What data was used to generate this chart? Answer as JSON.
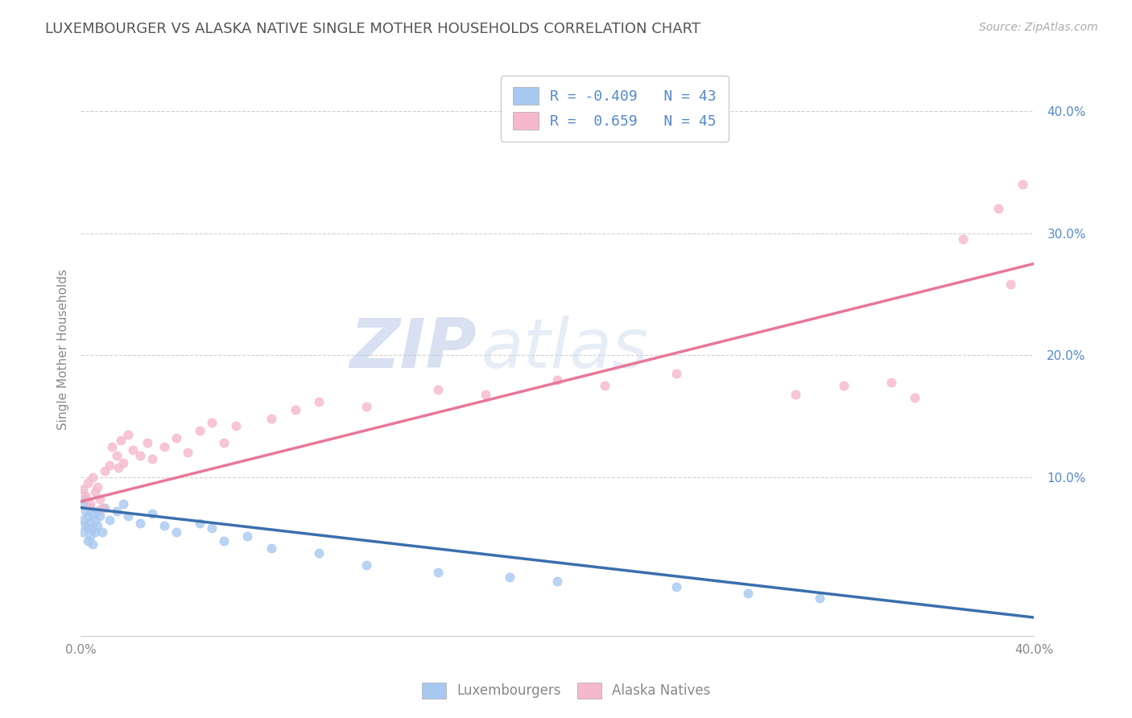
{
  "title": "LUXEMBOURGER VS ALASKA NATIVE SINGLE MOTHER HOUSEHOLDS CORRELATION CHART",
  "source": "Source: ZipAtlas.com",
  "ylabel": "Single Mother Households",
  "ytick_values": [
    0.1,
    0.2,
    0.3,
    0.4
  ],
  "xlim": [
    0.0,
    0.4
  ],
  "ylim": [
    -0.03,
    0.44
  ],
  "blue_scatter": [
    [
      0.001,
      0.078
    ],
    [
      0.001,
      0.065
    ],
    [
      0.001,
      0.055
    ],
    [
      0.002,
      0.082
    ],
    [
      0.002,
      0.072
    ],
    [
      0.002,
      0.06
    ],
    [
      0.003,
      0.068
    ],
    [
      0.003,
      0.058
    ],
    [
      0.003,
      0.048
    ],
    [
      0.004,
      0.075
    ],
    [
      0.004,
      0.063
    ],
    [
      0.004,
      0.052
    ],
    [
      0.005,
      0.07
    ],
    [
      0.005,
      0.058
    ],
    [
      0.005,
      0.045
    ],
    [
      0.006,
      0.065
    ],
    [
      0.006,
      0.055
    ],
    [
      0.007,
      0.072
    ],
    [
      0.007,
      0.06
    ],
    [
      0.008,
      0.068
    ],
    [
      0.009,
      0.055
    ],
    [
      0.01,
      0.075
    ],
    [
      0.012,
      0.065
    ],
    [
      0.015,
      0.072
    ],
    [
      0.018,
      0.078
    ],
    [
      0.02,
      0.068
    ],
    [
      0.025,
      0.062
    ],
    [
      0.03,
      0.07
    ],
    [
      0.035,
      0.06
    ],
    [
      0.04,
      0.055
    ],
    [
      0.05,
      0.062
    ],
    [
      0.055,
      0.058
    ],
    [
      0.06,
      0.048
    ],
    [
      0.07,
      0.052
    ],
    [
      0.08,
      0.042
    ],
    [
      0.1,
      0.038
    ],
    [
      0.12,
      0.028
    ],
    [
      0.15,
      0.022
    ],
    [
      0.18,
      0.018
    ],
    [
      0.2,
      0.015
    ],
    [
      0.25,
      0.01
    ],
    [
      0.28,
      0.005
    ],
    [
      0.31,
      0.001
    ]
  ],
  "pink_scatter": [
    [
      0.001,
      0.09
    ],
    [
      0.002,
      0.085
    ],
    [
      0.003,
      0.095
    ],
    [
      0.004,
      0.078
    ],
    [
      0.005,
      0.1
    ],
    [
      0.006,
      0.088
    ],
    [
      0.007,
      0.092
    ],
    [
      0.008,
      0.082
    ],
    [
      0.009,
      0.075
    ],
    [
      0.01,
      0.105
    ],
    [
      0.012,
      0.11
    ],
    [
      0.013,
      0.125
    ],
    [
      0.015,
      0.118
    ],
    [
      0.016,
      0.108
    ],
    [
      0.017,
      0.13
    ],
    [
      0.018,
      0.112
    ],
    [
      0.02,
      0.135
    ],
    [
      0.022,
      0.122
    ],
    [
      0.025,
      0.118
    ],
    [
      0.028,
      0.128
    ],
    [
      0.03,
      0.115
    ],
    [
      0.035,
      0.125
    ],
    [
      0.04,
      0.132
    ],
    [
      0.045,
      0.12
    ],
    [
      0.05,
      0.138
    ],
    [
      0.055,
      0.145
    ],
    [
      0.06,
      0.128
    ],
    [
      0.065,
      0.142
    ],
    [
      0.08,
      0.148
    ],
    [
      0.09,
      0.155
    ],
    [
      0.1,
      0.162
    ],
    [
      0.12,
      0.158
    ],
    [
      0.15,
      0.172
    ],
    [
      0.17,
      0.168
    ],
    [
      0.2,
      0.18
    ],
    [
      0.22,
      0.175
    ],
    [
      0.25,
      0.185
    ],
    [
      0.3,
      0.168
    ],
    [
      0.32,
      0.175
    ],
    [
      0.34,
      0.178
    ],
    [
      0.35,
      0.165
    ],
    [
      0.37,
      0.295
    ],
    [
      0.385,
      0.32
    ],
    [
      0.395,
      0.34
    ],
    [
      0.39,
      0.258
    ]
  ],
  "blue_line_x": [
    0.0,
    0.4
  ],
  "blue_line_y": [
    0.075,
    -0.015
  ],
  "pink_line_x": [
    0.0,
    0.4
  ],
  "pink_line_y": [
    0.08,
    0.275
  ],
  "blue_scatter_color": "#a8c8f0",
  "pink_scatter_color": "#f5b8cc",
  "blue_line_color": "#3a6fad",
  "pink_line_color": "#e87898",
  "legend_text_color": "#5588cc",
  "watermark_color": "#d0ddf0",
  "bg_color": "#ffffff",
  "scatter_alpha": 0.8,
  "scatter_size": 65,
  "grid_color": "#cccccc",
  "title_color": "#555555",
  "axis_label_color": "#888888",
  "ytick_color": "#5588cc",
  "xtick_color": "#888888"
}
